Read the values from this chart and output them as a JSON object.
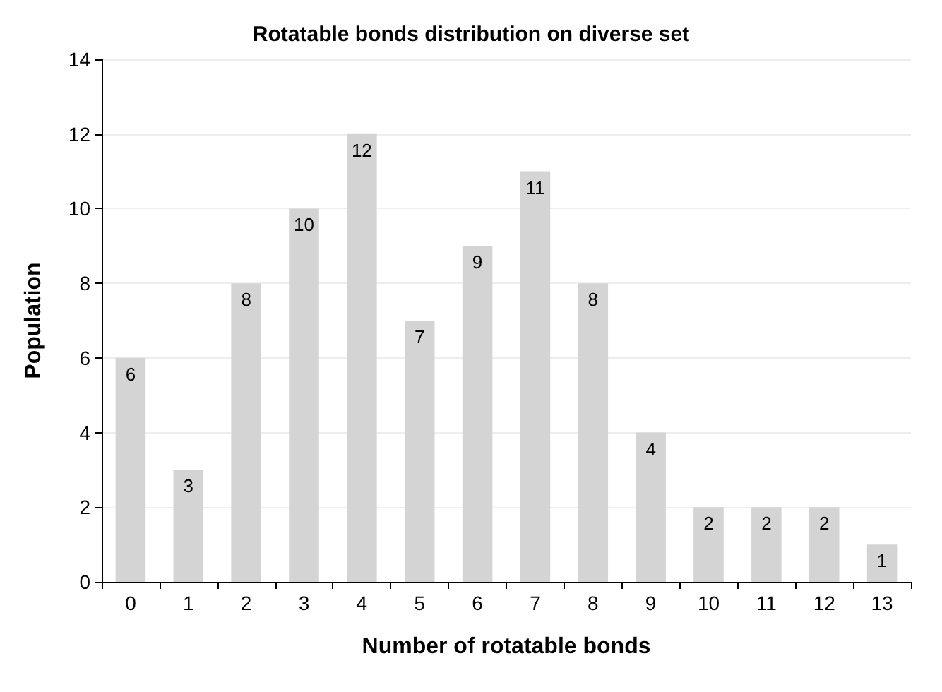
{
  "chart_data": {
    "type": "bar",
    "title": "Rotatable bonds distribution on diverse set",
    "xlabel": "Number of rotatable bonds",
    "ylabel": "Population",
    "categories": [
      "0",
      "1",
      "2",
      "3",
      "4",
      "5",
      "6",
      "7",
      "8",
      "9",
      "10",
      "11",
      "12",
      "13"
    ],
    "values": [
      6,
      3,
      8,
      10,
      12,
      7,
      9,
      11,
      8,
      4,
      2,
      2,
      2,
      1
    ],
    "color": "#d4d4d4",
    "ylim": [
      0,
      14
    ],
    "yticks": [
      0,
      2,
      4,
      6,
      8,
      10,
      12,
      14
    ],
    "grid": "y",
    "data_labels": true
  }
}
